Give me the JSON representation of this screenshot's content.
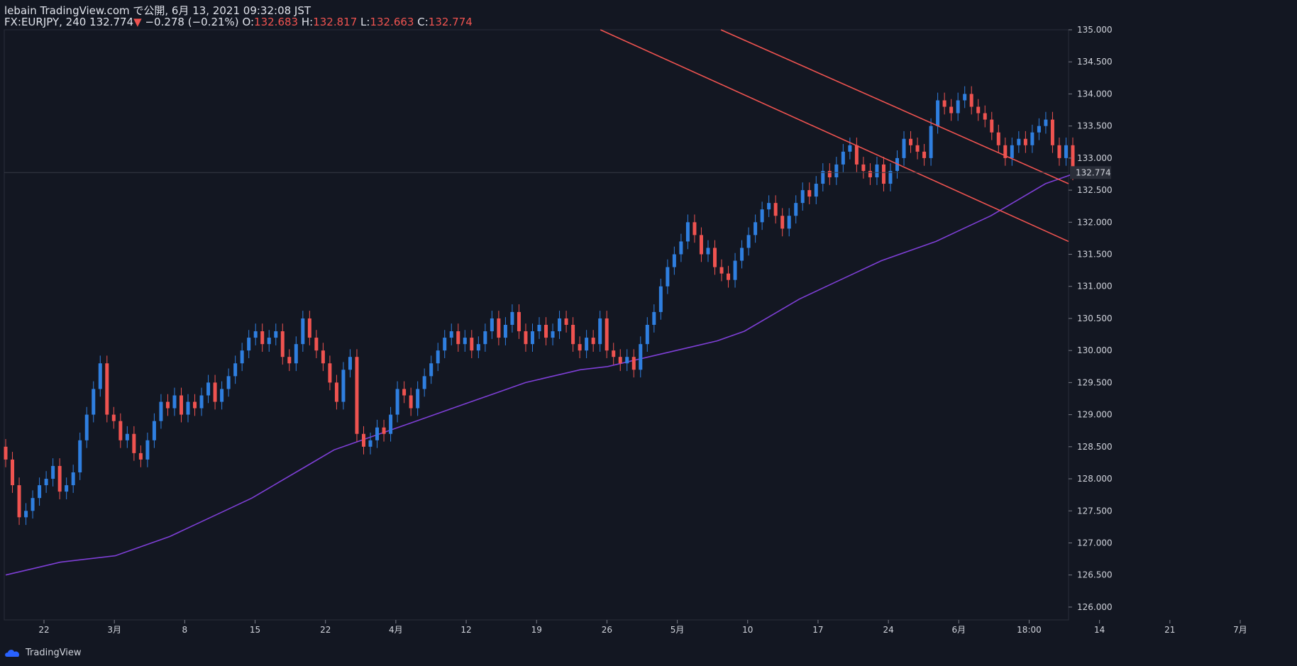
{
  "header": {
    "title": "lebain TradingView.com で公開, 6月 13, 2021 09:32:08 JST",
    "symbol": "FX:EURJPY, 240",
    "last": "132.774",
    "change_arrow": "▼",
    "change": "−0.278 (−0.21%)",
    "o_label": "O:",
    "o_value": "132.683",
    "h_label": "H:",
    "h_value": "132.817",
    "l_label": "L:",
    "l_value": "132.663",
    "c_label": "C:",
    "c_value": "132.774"
  },
  "footer": {
    "brand": "TradingView"
  },
  "colors": {
    "background": "#131722",
    "up": "#2f7fe0",
    "down": "#ef5350",
    "ma": "#7e3fd6",
    "trendline": "#ef5350",
    "axis_text": "#d1d4dc",
    "price_label_bg": "#2a2e39"
  },
  "chart_data": {
    "type": "candlestick",
    "symbol": "FX:EURJPY",
    "timeframe": "240",
    "ylim": [
      125.8,
      135.0
    ],
    "y_ticks": [
      "126.000",
      "126.500",
      "127.000",
      "127.500",
      "128.000",
      "128.500",
      "129.000",
      "129.500",
      "130.000",
      "130.500",
      "131.000",
      "131.500",
      "132.000",
      "132.500",
      "133.000",
      "133.500",
      "134.000",
      "134.500",
      "135.000"
    ],
    "x_ticks": [
      "22",
      "3月",
      "8",
      "15",
      "22",
      "4月",
      "12",
      "19",
      "26",
      "5月",
      "10",
      "17",
      "24",
      "6月",
      "18:00",
      "14",
      "21",
      "7月"
    ],
    "last_price_label": "132.774",
    "close_series": [
      128.3,
      127.9,
      127.4,
      127.5,
      127.7,
      127.9,
      128.0,
      128.2,
      127.8,
      127.9,
      128.1,
      128.6,
      129.0,
      129.4,
      129.8,
      129.0,
      128.9,
      128.6,
      128.7,
      128.4,
      128.3,
      128.6,
      128.9,
      129.2,
      129.1,
      129.3,
      129.0,
      129.2,
      129.1,
      129.3,
      129.5,
      129.2,
      129.4,
      129.6,
      129.8,
      130.0,
      130.2,
      130.3,
      130.1,
      130.2,
      130.3,
      129.9,
      129.8,
      130.1,
      130.5,
      130.2,
      130.0,
      129.8,
      129.5,
      129.2,
      129.7,
      129.9,
      128.7,
      128.5,
      128.6,
      128.8,
      128.7,
      129.0,
      129.4,
      129.3,
      129.1,
      129.4,
      129.6,
      129.8,
      130.0,
      130.2,
      130.3,
      130.1,
      130.2,
      130.0,
      130.1,
      130.3,
      130.5,
      130.2,
      130.4,
      130.6,
      130.3,
      130.1,
      130.3,
      130.4,
      130.2,
      130.3,
      130.5,
      130.4,
      130.1,
      130.0,
      130.2,
      130.1,
      130.5,
      130.0,
      129.9,
      129.8,
      129.9,
      129.7,
      130.1,
      130.4,
      130.6,
      131.0,
      131.3,
      131.5,
      131.7,
      132.0,
      131.8,
      131.5,
      131.6,
      131.3,
      131.2,
      131.1,
      131.4,
      131.6,
      131.8,
      132.0,
      132.2,
      132.3,
      132.1,
      131.9,
      132.1,
      132.3,
      132.5,
      132.4,
      132.6,
      132.8,
      132.7,
      132.9,
      133.1,
      133.2,
      132.9,
      132.8,
      132.7,
      132.9,
      132.6,
      132.8,
      133.0,
      133.3,
      133.2,
      133.1,
      133.0,
      133.5,
      133.9,
      133.8,
      133.7,
      133.9,
      134.0,
      133.8,
      133.7,
      133.6,
      133.4,
      133.2,
      133.0,
      133.2,
      133.3,
      133.2,
      133.4,
      133.5,
      133.6,
      133.2,
      133.0,
      133.2,
      132.774
    ],
    "ma_series": [
      126.5,
      126.6,
      126.7,
      126.75,
      126.8,
      126.95,
      127.1,
      127.3,
      127.5,
      127.7,
      127.95,
      128.2,
      128.45,
      128.6,
      128.75,
      128.9,
      129.05,
      129.2,
      129.35,
      129.5,
      129.6,
      129.7,
      129.75,
      129.85,
      129.95,
      130.05,
      130.15,
      130.3,
      130.55,
      130.8,
      131.0,
      131.2,
      131.4,
      131.55,
      131.7,
      131.9,
      132.1,
      132.35,
      132.6,
      132.75
    ],
    "trendlines": [
      {
        "start": [
          "2021-04-23",
          135.0
        ],
        "end": [
          "2021-07-01",
          131.7
        ]
      },
      {
        "start": [
          "2021-05-06",
          135.0
        ],
        "end": [
          "2021-07-01",
          132.6
        ]
      }
    ]
  }
}
